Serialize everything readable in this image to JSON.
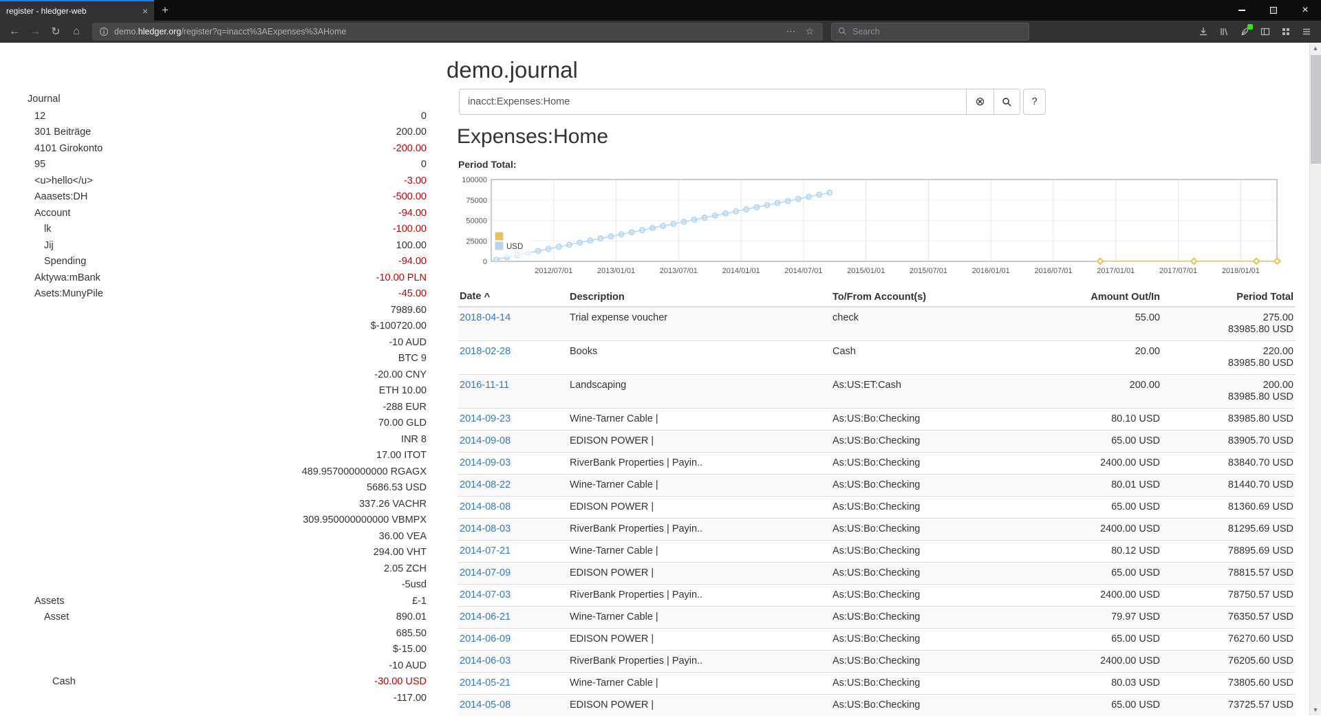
{
  "browser": {
    "tab_title": "register - hledger-web",
    "url": {
      "subdomain": "demo.",
      "domain": "hledger.org",
      "path": "/register?q=inacct%3AExpenses%3AHome"
    },
    "search_placeholder": "Search"
  },
  "icons": {
    "new_tab": "+",
    "back": "←",
    "forward": "→",
    "reload": "↻",
    "home": "⌂",
    "url_dots": "⋯",
    "url_star": "☆",
    "tab_close": "×",
    "clear_button": "⊗",
    "sort_caret": "^",
    "scroll_up": "▲",
    "scroll_down": "▼"
  },
  "page": {
    "title": "demo.journal",
    "query_input_value": "inacct:Expenses:Home",
    "help_label": "?",
    "heading": "Expenses:Home",
    "chart_label": "Period Total:"
  },
  "sidebar": {
    "journal_label": "Journal",
    "rows": [
      {
        "name": "12",
        "amount": "0",
        "indent": 1,
        "neg": false
      },
      {
        "name": "301 Beiträge",
        "amount": "200.00",
        "indent": 1,
        "neg": false
      },
      {
        "name": "4101 Girokonto",
        "amount": "-200.00",
        "indent": 1,
        "neg": true
      },
      {
        "name": "95",
        "amount": "0",
        "indent": 1,
        "neg": false
      },
      {
        "name": "<u>hello</u>",
        "amount": "-3.00",
        "indent": 1,
        "neg": true
      },
      {
        "name": "Aaasets:DH",
        "amount": "-500.00",
        "indent": 1,
        "neg": true
      },
      {
        "name": "Account",
        "amount": "-94.00",
        "indent": 1,
        "neg": true
      },
      {
        "name": "lk",
        "amount": "-100.00",
        "indent": 2,
        "neg": true
      },
      {
        "name": "Jij",
        "amount": "100.00",
        "indent": 2,
        "neg": false
      },
      {
        "name": "Spending",
        "amount": "-94.00",
        "indent": 2,
        "neg": true
      },
      {
        "name": "Aktywa:mBank",
        "amount": "-10.00 PLN",
        "indent": 1,
        "neg": true
      },
      {
        "name": "Asets:MunyPile",
        "amount": "-45.00",
        "indent": 1,
        "neg": true
      },
      {
        "name": "",
        "amount": "7989.60",
        "indent": 0,
        "neg": false
      },
      {
        "name": "",
        "amount": "$-100720.00",
        "indent": 0,
        "neg": false
      },
      {
        "name": "",
        "amount": "-10 AUD",
        "indent": 0,
        "neg": false
      },
      {
        "name": "",
        "amount": "BTC 9",
        "indent": 0,
        "neg": false
      },
      {
        "name": "",
        "amount": "-20.00 CNY",
        "indent": 0,
        "neg": false
      },
      {
        "name": "",
        "amount": "ETH 10.00",
        "indent": 0,
        "neg": false
      },
      {
        "name": "",
        "amount": "-288 EUR",
        "indent": 0,
        "neg": false
      },
      {
        "name": "",
        "amount": "70.00 GLD",
        "indent": 0,
        "neg": false
      },
      {
        "name": "",
        "amount": "INR 8",
        "indent": 0,
        "neg": false
      },
      {
        "name": "",
        "amount": "17.00 ITOT",
        "indent": 0,
        "neg": false
      },
      {
        "name": "",
        "amount": "489.957000000000 RGAGX",
        "indent": 0,
        "neg": false
      },
      {
        "name": "",
        "amount": "5686.53 USD",
        "indent": 0,
        "neg": false
      },
      {
        "name": "",
        "amount": "337.26 VACHR",
        "indent": 0,
        "neg": false
      },
      {
        "name": "",
        "amount": "309.950000000000 VBMPX",
        "indent": 0,
        "neg": false
      },
      {
        "name": "",
        "amount": "36.00 VEA",
        "indent": 0,
        "neg": false
      },
      {
        "name": "",
        "amount": "294.00 VHT",
        "indent": 0,
        "neg": false
      },
      {
        "name": "",
        "amount": "2.05 ZCH",
        "indent": 0,
        "neg": false
      },
      {
        "name": "",
        "amount": "-5usd",
        "indent": 0,
        "neg": false
      },
      {
        "name": "Assets",
        "amount": "£-1",
        "indent": 1,
        "neg": false
      },
      {
        "name": "Asset",
        "amount": "890.01",
        "indent": 2,
        "neg": false
      },
      {
        "name": "",
        "amount": "685.50",
        "indent": 0,
        "neg": false
      },
      {
        "name": "",
        "amount": "$-15.00",
        "indent": 0,
        "neg": false
      },
      {
        "name": "",
        "amount": "-10 AUD",
        "indent": 0,
        "neg": false
      },
      {
        "name": "Cash",
        "amount": "-30.00 USD",
        "indent": 3,
        "neg": true
      },
      {
        "name": "",
        "amount": "-117.00",
        "indent": 0,
        "neg": false
      }
    ]
  },
  "register": {
    "columns": [
      "Date",
      "Description",
      "To/From Account(s)",
      "Amount Out/In",
      "Period Total"
    ],
    "rows": [
      {
        "date": "2018-04-14",
        "description": "Trial expense voucher",
        "account": "check",
        "amount": "55.00",
        "period_total": [
          "275.00",
          "83985.80 USD"
        ]
      },
      {
        "date": "2018-02-28",
        "description": "Books",
        "account": "Cash",
        "amount": "20.00",
        "period_total": [
          "220.00",
          "83985.80 USD"
        ]
      },
      {
        "date": "2016-11-11",
        "description": "Landscaping",
        "account": "As:US:ET:Cash",
        "amount": "200.00",
        "period_total": [
          "200.00",
          "83985.80 USD"
        ]
      },
      {
        "date": "2014-09-23",
        "description": "Wine-Tarner Cable |",
        "account": "As:US:Bo:Checking",
        "amount": "80.10 USD",
        "period_total": [
          "83985.80 USD"
        ]
      },
      {
        "date": "2014-09-08",
        "description": "EDISON POWER |",
        "account": "As:US:Bo:Checking",
        "amount": "65.00 USD",
        "period_total": [
          "83905.70 USD"
        ]
      },
      {
        "date": "2014-09-03",
        "description": "RiverBank Properties | Payin..",
        "account": "As:US:Bo:Checking",
        "amount": "2400.00 USD",
        "period_total": [
          "83840.70 USD"
        ]
      },
      {
        "date": "2014-08-22",
        "description": "Wine-Tarner Cable |",
        "account": "As:US:Bo:Checking",
        "amount": "80.01 USD",
        "period_total": [
          "81440.70 USD"
        ]
      },
      {
        "date": "2014-08-08",
        "description": "EDISON POWER |",
        "account": "As:US:Bo:Checking",
        "amount": "65.00 USD",
        "period_total": [
          "81360.69 USD"
        ]
      },
      {
        "date": "2014-08-03",
        "description": "RiverBank Properties | Payin..",
        "account": "As:US:Bo:Checking",
        "amount": "2400.00 USD",
        "period_total": [
          "81295.69 USD"
        ]
      },
      {
        "date": "2014-07-21",
        "description": "Wine-Tarner Cable |",
        "account": "As:US:Bo:Checking",
        "amount": "80.12 USD",
        "period_total": [
          "78895.69 USD"
        ]
      },
      {
        "date": "2014-07-09",
        "description": "EDISON POWER |",
        "account": "As:US:Bo:Checking",
        "amount": "65.00 USD",
        "period_total": [
          "78815.57 USD"
        ]
      },
      {
        "date": "2014-07-03",
        "description": "RiverBank Properties | Payin..",
        "account": "As:US:Bo:Checking",
        "amount": "2400.00 USD",
        "period_total": [
          "78750.57 USD"
        ]
      },
      {
        "date": "2014-06-21",
        "description": "Wine-Tarner Cable |",
        "account": "As:US:Bo:Checking",
        "amount": "79.97 USD",
        "period_total": [
          "76350.57 USD"
        ]
      },
      {
        "date": "2014-06-09",
        "description": "EDISON POWER |",
        "account": "As:US:Bo:Checking",
        "amount": "65.00 USD",
        "period_total": [
          "76270.60 USD"
        ]
      },
      {
        "date": "2014-06-03",
        "description": "RiverBank Properties | Payin..",
        "account": "As:US:Bo:Checking",
        "amount": "2400.00 USD",
        "period_total": [
          "76205.60 USD"
        ]
      },
      {
        "date": "2014-05-21",
        "description": "Wine-Tarner Cable |",
        "account": "As:US:Bo:Checking",
        "amount": "80.03 USD",
        "period_total": [
          "73805.60 USD"
        ]
      },
      {
        "date": "2014-05-08",
        "description": "EDISON POWER |",
        "account": "As:US:Bo:Checking",
        "amount": "65.00 USD",
        "period_total": [
          "73725.57 USD"
        ]
      }
    ]
  },
  "chart_data": {
    "type": "line",
    "title": "Period Total:",
    "xlabel": "",
    "ylabel": "",
    "ylim": [
      0,
      100000
    ],
    "yticks": [
      0,
      25000,
      50000,
      75000,
      100000
    ],
    "xticks": [
      "2012/07/01",
      "2013/01/01",
      "2013/07/01",
      "2014/01/01",
      "2014/07/01",
      "2015/01/01",
      "2015/07/01",
      "2016/01/01",
      "2016/07/01",
      "2017/01/01",
      "2017/07/01",
      "2018/01/01"
    ],
    "xlim_decimal": [
      2012.0,
      2018.29
    ],
    "grid": true,
    "legend_position": "bottom-left",
    "legend": [
      {
        "label": "",
        "color": "#edc240"
      },
      {
        "label": "USD",
        "color": "#afd8f8"
      }
    ],
    "series": [
      {
        "name": "USD",
        "color": "#afd8f8",
        "marker": "circle",
        "points": [
          [
            "2012-01",
            2545
          ],
          [
            "2012-02",
            5090
          ],
          [
            "2012-03",
            7635
          ],
          [
            "2012-04",
            10180
          ],
          [
            "2012-05",
            12725
          ],
          [
            "2012-06",
            15270
          ],
          [
            "2012-07",
            17815
          ],
          [
            "2012-08",
            20360
          ],
          [
            "2012-09",
            22905
          ],
          [
            "2012-10",
            25450
          ],
          [
            "2012-11",
            27995
          ],
          [
            "2012-12",
            30540
          ],
          [
            "2013-01",
            33085
          ],
          [
            "2013-02",
            35630
          ],
          [
            "2013-03",
            38175
          ],
          [
            "2013-04",
            40720
          ],
          [
            "2013-05",
            43265
          ],
          [
            "2013-06",
            45810
          ],
          [
            "2013-07",
            48355
          ],
          [
            "2013-08",
            50900
          ],
          [
            "2013-09",
            53445
          ],
          [
            "2013-10",
            55990
          ],
          [
            "2013-11",
            58535
          ],
          [
            "2013-12",
            61080
          ],
          [
            "2014-01",
            63625
          ],
          [
            "2014-02",
            66170
          ],
          [
            "2014-03",
            68715
          ],
          [
            "2014-04",
            71260
          ],
          [
            "2014-05",
            73805
          ],
          [
            "2014-06",
            76350
          ],
          [
            "2014-07",
            78895
          ],
          [
            "2014-08",
            81440
          ],
          [
            "2014-09",
            83985
          ]
        ]
      },
      {
        "name": "",
        "color": "#edc240",
        "marker": "diamond",
        "points": [
          [
            "2016-11",
            200
          ],
          [
            "2017-08",
            200
          ],
          [
            "2018-02",
            220
          ],
          [
            "2018-04",
            275
          ]
        ]
      }
    ]
  }
}
